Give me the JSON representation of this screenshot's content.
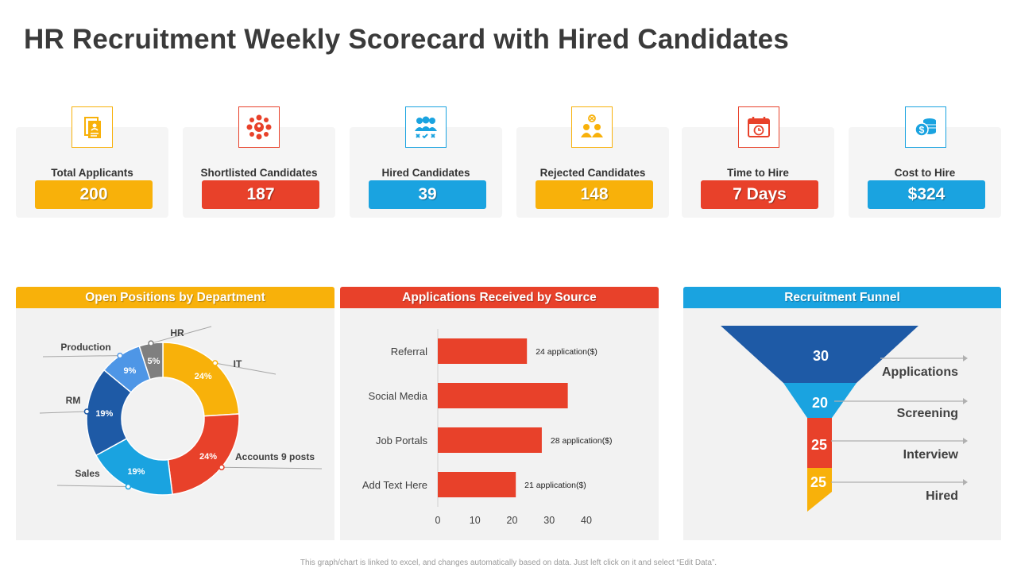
{
  "title": "HR Recruitment Weekly Scorecard with Hired Candidates",
  "kpis": [
    {
      "label": "Total Applicants",
      "value": "200",
      "color": "#f8b10a",
      "icon": "applicant-document-icon"
    },
    {
      "label": "Shortlisted Candidates",
      "value": "187",
      "color": "#e8412a",
      "icon": "network-people-icon"
    },
    {
      "label": "Hired Candidates",
      "value": "39",
      "color": "#1aa3e0",
      "icon": "team-check-icon"
    },
    {
      "label": "Rejected Candidates",
      "value": "148",
      "color": "#f8b10a",
      "icon": "rejected-people-icon"
    },
    {
      "label": "Time to Hire",
      "value": "7 Days",
      "color": "#e8412a",
      "icon": "calendar-clock-icon"
    },
    {
      "label": "Cost to Hire",
      "value": "$324",
      "color": "#1aa3e0",
      "icon": "coins-icon"
    }
  ],
  "panels": {
    "departments": {
      "title": "Open Positions by Department",
      "color": "#f8b10a"
    },
    "sources": {
      "title": "Applications Received by Source",
      "color": "#e8412a"
    },
    "funnel": {
      "title": "Recruitment Funnel",
      "color": "#1aa3e0"
    }
  },
  "chart_data": [
    {
      "type": "pie",
      "title": "Open Positions by Department",
      "slices": [
        {
          "label": "IT",
          "value": 24,
          "value_label": "24%",
          "color": "#f8b10a"
        },
        {
          "label": "Accounts 9 posts",
          "value": 24,
          "value_label": "24%",
          "color": "#e8412a"
        },
        {
          "label": "Sales",
          "value": 19,
          "value_label": "19%",
          "color": "#1aa3e0"
        },
        {
          "label": "RM",
          "value": 19,
          "value_label": "19%",
          "color": "#1e5aa6"
        },
        {
          "label": "Production",
          "value": 9,
          "value_label": "9%",
          "color": "#4e96e6"
        },
        {
          "label": "HR",
          "value": 5,
          "value_label": "5%",
          "color": "#7f7f7f"
        }
      ]
    },
    {
      "type": "bar",
      "orientation": "horizontal",
      "title": "Applications Received by Source",
      "categories": [
        "Referral",
        "Social Media",
        "Job Portals",
        "Add Text Here"
      ],
      "values": [
        24,
        35,
        28,
        21
      ],
      "data_labels": [
        "24 application($)",
        "",
        "28 application($)",
        "21 application($)"
      ],
      "xlim": [
        0,
        40
      ],
      "xticks": [
        "0",
        "10",
        "20",
        "30",
        "40"
      ],
      "color": "#e8412a"
    },
    {
      "type": "funnel",
      "title": "Recruitment Funnel",
      "stages": [
        {
          "label": "Applications",
          "value": "30",
          "color": "#1e5aa6"
        },
        {
          "label": "Screening",
          "value": "20",
          "color": "#1aa3e0"
        },
        {
          "label": "Interview",
          "value": "25",
          "color": "#e8412a"
        },
        {
          "label": "Hired",
          "value": "25",
          "color": "#f8b10a"
        }
      ]
    }
  ],
  "footnote": "This graph/chart is linked to excel, and changes automatically based on data. Just left click on it and select “Edit Data”."
}
